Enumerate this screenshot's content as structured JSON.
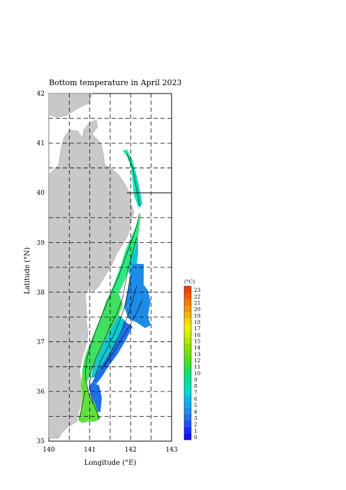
{
  "title": "Bottom temperature in April 2023",
  "xlabel": "Longitude (°E)",
  "ylabel": "Latitude (°N)",
  "x_ticks": [
    "140",
    "141",
    "142",
    "143"
  ],
  "y_ticks": [
    "35",
    "36",
    "37",
    "38",
    "39",
    "40",
    "41",
    "42"
  ],
  "colorbar": {
    "unit": "(°C)",
    "levels": [
      "0",
      "1",
      "2",
      "3",
      "4",
      "5",
      "6",
      "7",
      "8",
      "9",
      "10",
      "11",
      "12",
      "13",
      "14",
      "15",
      "16",
      "17",
      "18",
      "19",
      "20",
      "21",
      "22",
      "23"
    ],
    "colors": [
      "#1010ff",
      "#1a2cff",
      "#1e50ff",
      "#2070f0",
      "#1c8cf0",
      "#10a8f0",
      "#00c0e8",
      "#00d8d8",
      "#00e0b0",
      "#00e090",
      "#10e070",
      "#30e040",
      "#50e020",
      "#70e010",
      "#90e000",
      "#b0e800",
      "#d0f000",
      "#f0f000",
      "#f8d800",
      "#f8b800",
      "#f89800",
      "#f87800",
      "#f85800",
      "#f04000"
    ]
  },
  "chart_data": {
    "type": "heatmap",
    "title": "Bottom temperature in April 2023",
    "xlabel": "Longitude (°E)",
    "ylabel": "Latitude (°N)",
    "xlim": [
      140,
      143
    ],
    "ylim": [
      35,
      42
    ],
    "colorbar_range": [
      0,
      23
    ],
    "colorbar_unit": "(°C)",
    "approx_regions": [
      {
        "lon": [
          141.8,
          142.2
        ],
        "lat": [
          39.6,
          40.8
        ],
        "temp_c": 6
      },
      {
        "lon": [
          141.3,
          141.9
        ],
        "lat": [
          38.2,
          39.4
        ],
        "temp_c": 8
      },
      {
        "lon": [
          141.8,
          142.4
        ],
        "lat": [
          37.6,
          38.6
        ],
        "temp_c": 4
      },
      {
        "lon": [
          140.9,
          141.5
        ],
        "lat": [
          36.6,
          37.8
        ],
        "temp_c": 11
      },
      {
        "lon": [
          141.5,
          142.0
        ],
        "lat": [
          36.6,
          37.6
        ],
        "temp_c": 6
      },
      {
        "lon": [
          140.8,
          141.2
        ],
        "lat": [
          35.4,
          36.4
        ],
        "temp_c": 13
      }
    ],
    "grid": true
  }
}
